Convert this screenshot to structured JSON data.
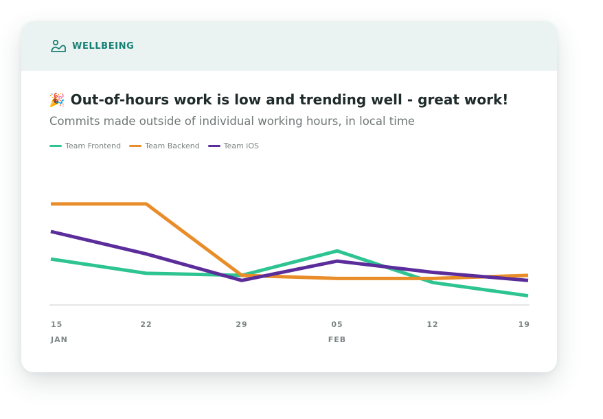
{
  "header": {
    "label": "WELLBEING",
    "icon": "person-landscape-icon"
  },
  "headline": {
    "emoji": "🎉",
    "text": "Out-of-hours work is low and trending well - great work!"
  },
  "subtitle": "Commits made outside of individual working hours, in local time",
  "colors": {
    "accent": "#157f73",
    "header_bg": "#eaf3f1",
    "frontend": "#2ec492",
    "backend": "#e98d2a",
    "ios": "#5a2d9a",
    "axis": "#c8cccc"
  },
  "chart_data": {
    "type": "line",
    "x": [
      "2024-01-15",
      "2024-01-22",
      "2024-01-29",
      "2024-02-05",
      "2024-02-12",
      "2024-02-19"
    ],
    "tick_labels": [
      {
        "day": "15",
        "month": "JAN"
      },
      {
        "day": "22",
        "month": ""
      },
      {
        "day": "29",
        "month": ""
      },
      {
        "day": "05",
        "month": "FEB"
      },
      {
        "day": "12",
        "month": ""
      },
      {
        "day": "19",
        "month": ""
      }
    ],
    "series": [
      {
        "name": "Team Frontend",
        "color": "#2ec492",
        "values": [
          4.5,
          3.1,
          2.9,
          5.3,
          2.2,
          0.9
        ]
      },
      {
        "name": "Team Backend",
        "color": "#e98d2a",
        "values": [
          9.9,
          9.9,
          2.9,
          2.6,
          2.6,
          2.9
        ]
      },
      {
        "name": "Team iOS",
        "color": "#5a2d9a",
        "values": [
          7.2,
          5.0,
          2.4,
          4.3,
          3.2,
          2.4
        ]
      }
    ],
    "ylim": [
      0,
      14
    ],
    "grid": false,
    "legend": "top-left",
    "xlabel": "",
    "ylabel": ""
  }
}
